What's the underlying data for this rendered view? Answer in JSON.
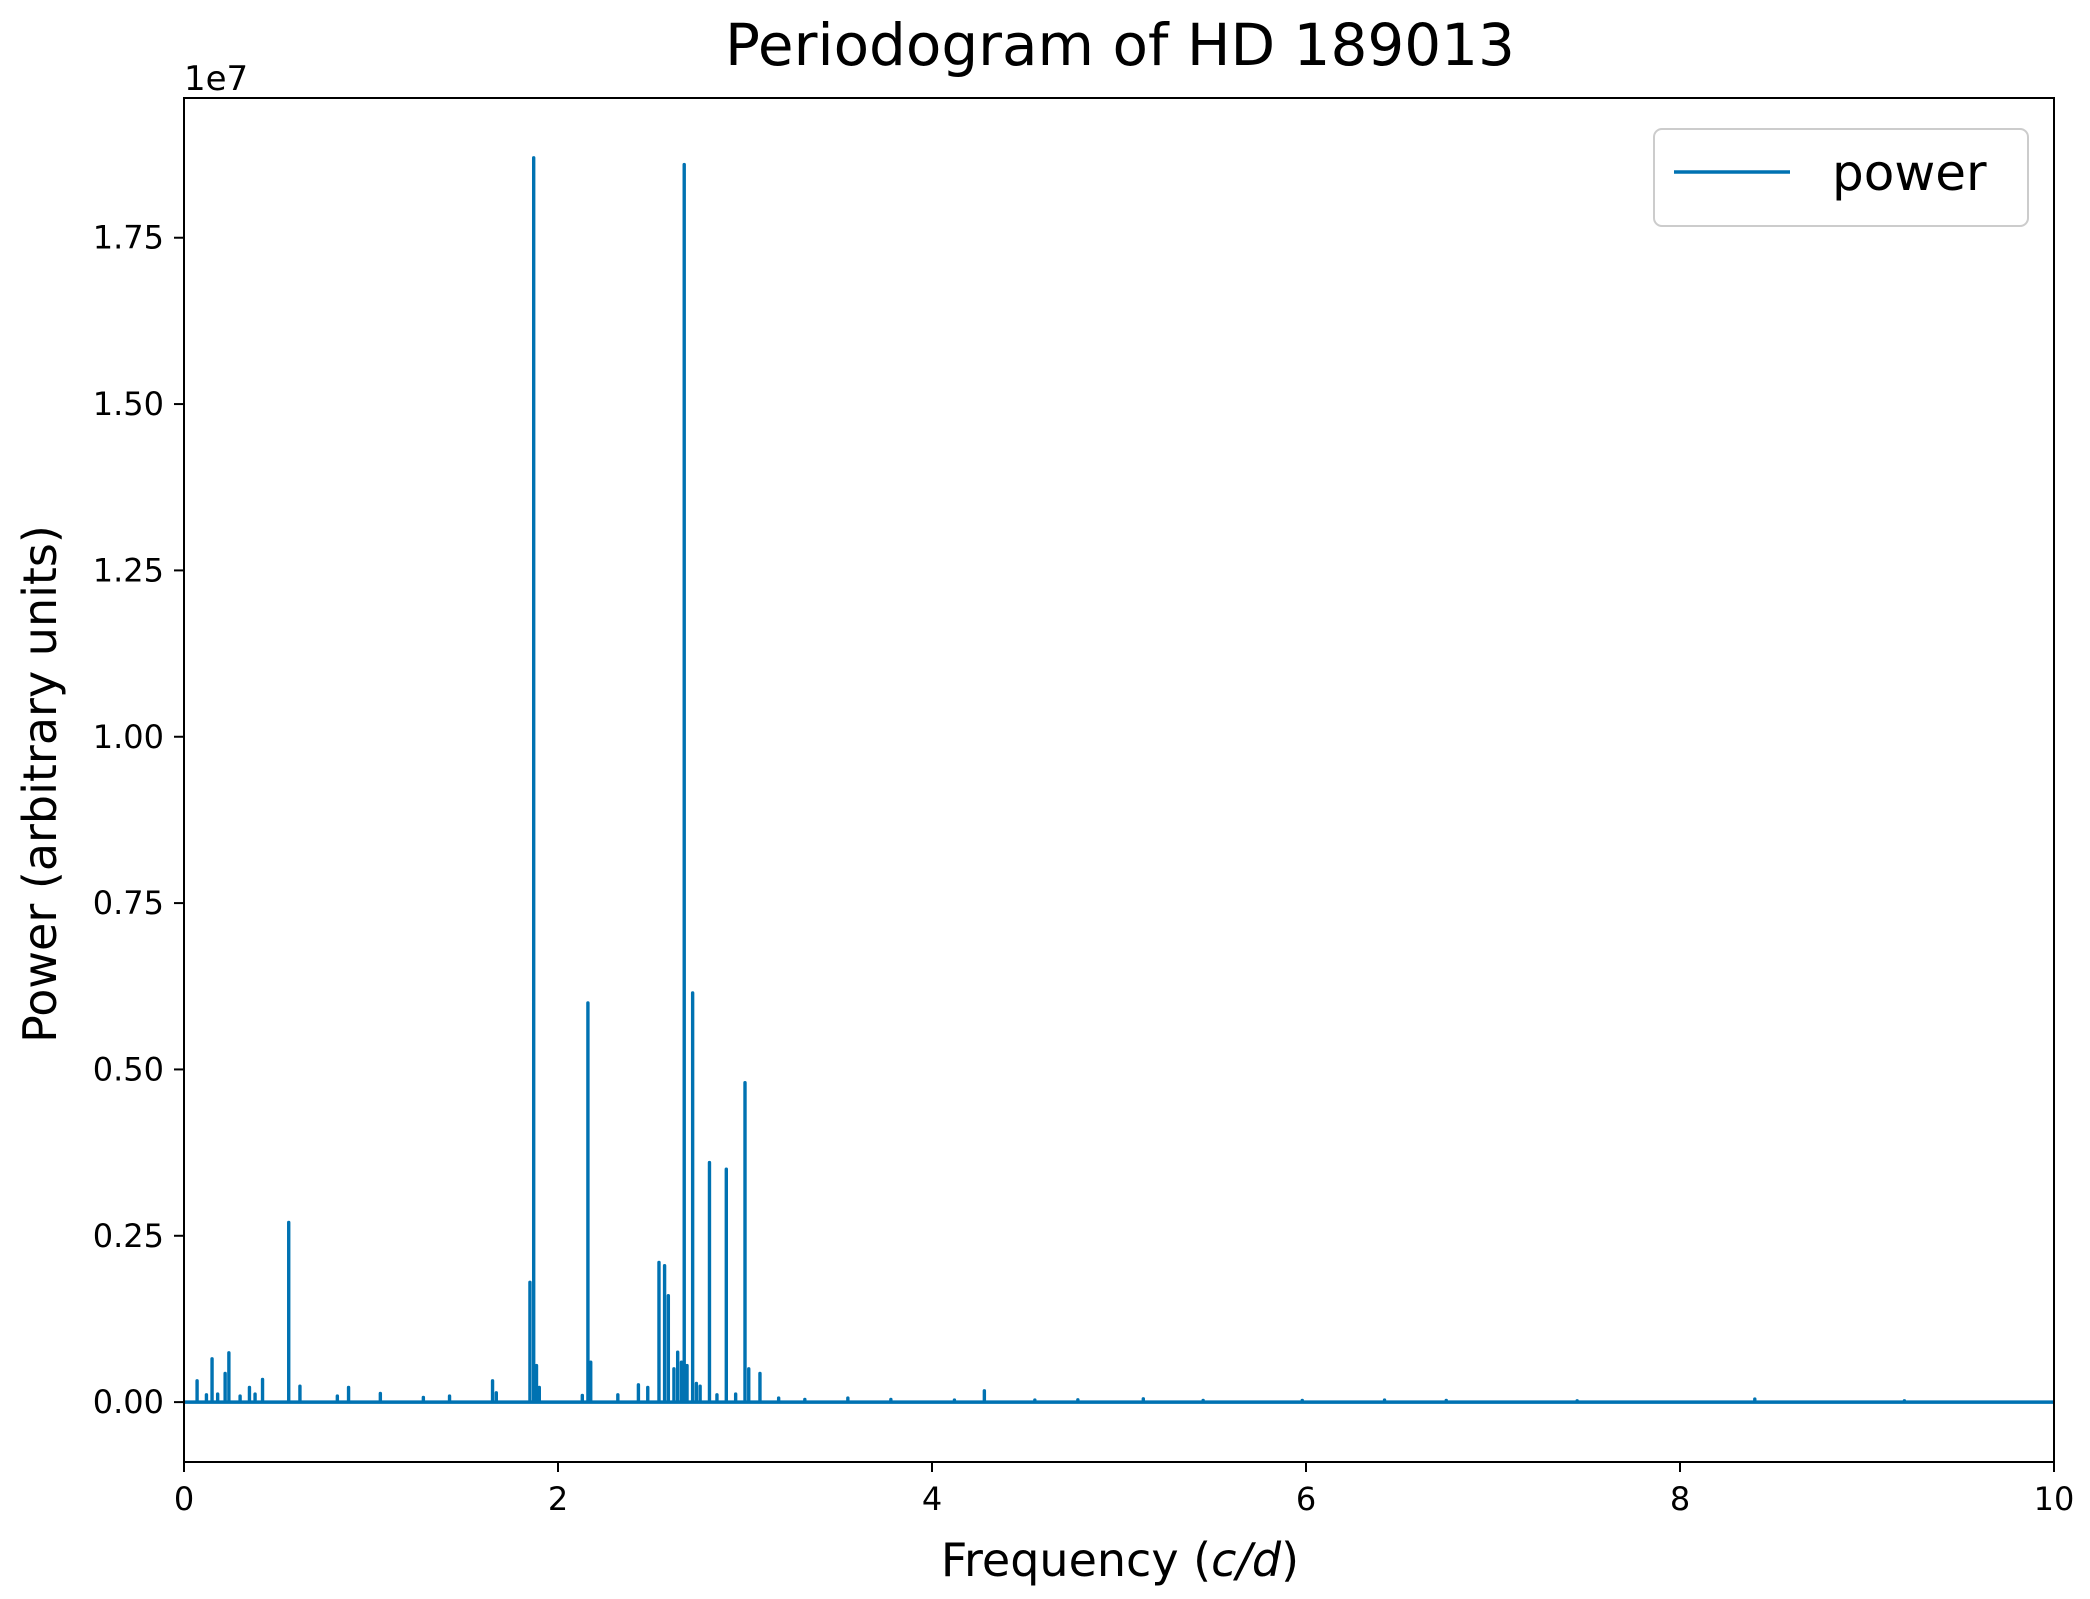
{
  "chart_data": {
    "type": "line",
    "title": "Periodogram of HD 189013",
    "xlabel_prefix": "Frequency (",
    "xlabel_unit": "c/d",
    "xlabel_suffix": ")",
    "ylabel": "Power (arbitrary units)",
    "y_offset_label": "1e7",
    "y_scale": 10000000,
    "xlim": [
      0,
      10
    ],
    "ylim": [
      -900000,
      19600000
    ],
    "x_ticks": [
      0,
      2,
      4,
      6,
      8,
      10
    ],
    "x_tick_labels": [
      "0",
      "2",
      "4",
      "6",
      "8",
      "10"
    ],
    "y_ticks": [
      0,
      2500000,
      5000000,
      7500000,
      10000000,
      12500000,
      15000000,
      17500000
    ],
    "y_tick_labels": [
      "0.00",
      "0.25",
      "0.50",
      "0.75",
      "1.00",
      "1.25",
      "1.50",
      "1.75"
    ],
    "grid": false,
    "legend_position": "top-right",
    "series": [
      {
        "name": "power",
        "color": "#0072b2",
        "peaks": [
          [
            0.07,
            320000
          ],
          [
            0.12,
            110000
          ],
          [
            0.15,
            650000
          ],
          [
            0.18,
            120000
          ],
          [
            0.22,
            430000
          ],
          [
            0.24,
            740000
          ],
          [
            0.3,
            90000
          ],
          [
            0.35,
            220000
          ],
          [
            0.38,
            120000
          ],
          [
            0.42,
            340000
          ],
          [
            0.56,
            2700000
          ],
          [
            0.62,
            240000
          ],
          [
            0.82,
            90000
          ],
          [
            0.88,
            220000
          ],
          [
            1.05,
            130000
          ],
          [
            1.28,
            70000
          ],
          [
            1.42,
            90000
          ],
          [
            1.65,
            320000
          ],
          [
            1.67,
            140000
          ],
          [
            1.85,
            1800000
          ],
          [
            1.87,
            18700000
          ],
          [
            1.885,
            550000
          ],
          [
            1.9,
            220000
          ],
          [
            2.13,
            100000
          ],
          [
            2.16,
            6000000
          ],
          [
            2.175,
            600000
          ],
          [
            2.32,
            110000
          ],
          [
            2.43,
            260000
          ],
          [
            2.48,
            220000
          ],
          [
            2.54,
            2100000
          ],
          [
            2.57,
            2050000
          ],
          [
            2.59,
            1600000
          ],
          [
            2.62,
            500000
          ],
          [
            2.64,
            750000
          ],
          [
            2.66,
            600000
          ],
          [
            2.675,
            18600000
          ],
          [
            2.69,
            550000
          ],
          [
            2.72,
            6150000
          ],
          [
            2.74,
            280000
          ],
          [
            2.76,
            240000
          ],
          [
            2.81,
            3600000
          ],
          [
            2.85,
            110000
          ],
          [
            2.9,
            3500000
          ],
          [
            2.95,
            120000
          ],
          [
            3.0,
            4800000
          ],
          [
            3.02,
            500000
          ],
          [
            3.08,
            430000
          ],
          [
            3.18,
            60000
          ],
          [
            3.32,
            40000
          ],
          [
            3.55,
            60000
          ],
          [
            3.78,
            40000
          ],
          [
            4.12,
            30000
          ],
          [
            4.28,
            170000
          ],
          [
            4.55,
            30000
          ],
          [
            4.78,
            35000
          ],
          [
            5.13,
            50000
          ],
          [
            5.45,
            25000
          ],
          [
            5.98,
            25000
          ],
          [
            6.42,
            30000
          ],
          [
            6.75,
            25000
          ],
          [
            7.45,
            20000
          ],
          [
            8.4,
            45000
          ],
          [
            9.2,
            20000
          ]
        ]
      }
    ]
  }
}
